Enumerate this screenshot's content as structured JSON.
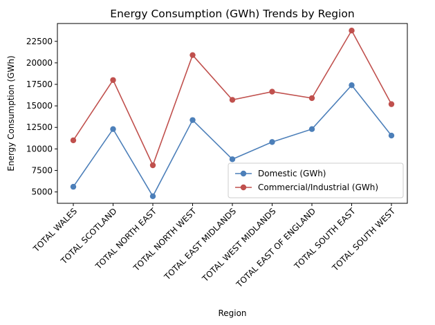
{
  "chart_data": {
    "type": "line",
    "title": "Energy Consumption (GWh) Trends by Region",
    "xlabel": "Region",
    "ylabel": "Energy Consumption (GWh)",
    "categories": [
      "TOTAL WALES",
      "TOTAL SCOTLAND",
      "TOTAL NORTH EAST",
      "TOTAL NORTH WEST",
      "TOTAL EAST MIDLANDS",
      "TOTAL WEST MIDLANDS",
      "TOTAL EAST OF ENGLAND",
      "TOTAL SOUTH EAST",
      "TOTAL SOUTH WEST"
    ],
    "series": [
      {
        "name": "Domestic (GWh)",
        "color": "#4c7fb9",
        "values": [
          5600,
          12300,
          4500,
          13350,
          8800,
          10800,
          12300,
          17400,
          11550
        ]
      },
      {
        "name": "Commercial/Industrial (GWh)",
        "color": "#c0504d",
        "values": [
          11000,
          18000,
          8100,
          20900,
          15700,
          16650,
          15900,
          23750,
          15200
        ]
      }
    ],
    "yticks": [
      5000,
      7500,
      10000,
      12500,
      15000,
      17500,
      20000,
      22500
    ],
    "ylim": [
      3680,
      24570
    ],
    "grid": false,
    "legend_position": "lower-right"
  }
}
